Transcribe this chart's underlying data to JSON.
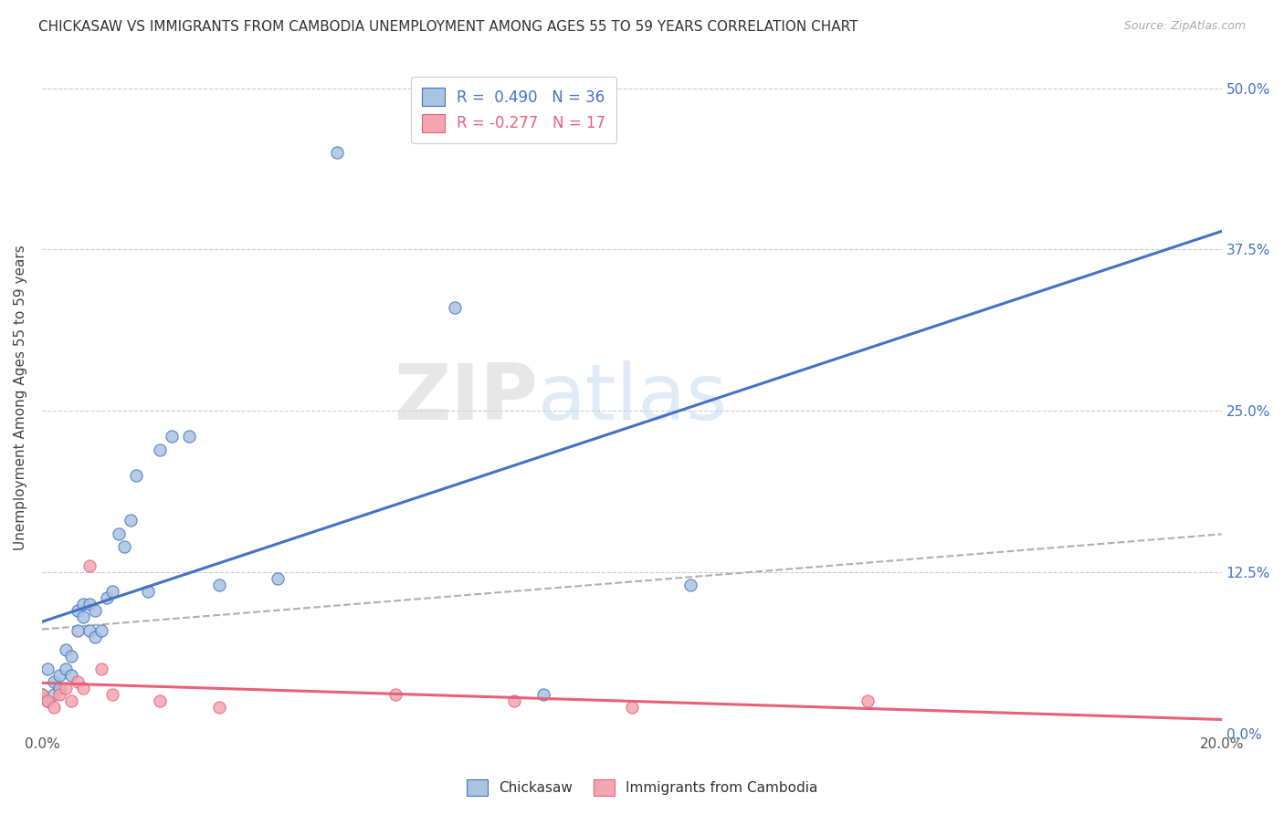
{
  "title": "CHICKASAW VS IMMIGRANTS FROM CAMBODIA UNEMPLOYMENT AMONG AGES 55 TO 59 YEARS CORRELATION CHART",
  "source": "Source: ZipAtlas.com",
  "ylabel": "Unemployment Among Ages 55 to 59 years",
  "legend_label1": "Chickasaw",
  "legend_label2": "Immigrants from Cambodia",
  "r1": 0.49,
  "n1": 36,
  "r2": -0.277,
  "n2": 17,
  "chickasaw_x": [
    0.0,
    0.001,
    0.001,
    0.002,
    0.002,
    0.003,
    0.003,
    0.004,
    0.004,
    0.005,
    0.005,
    0.006,
    0.006,
    0.007,
    0.007,
    0.008,
    0.008,
    0.009,
    0.009,
    0.01,
    0.011,
    0.012,
    0.013,
    0.014,
    0.015,
    0.016,
    0.018,
    0.02,
    0.022,
    0.025,
    0.03,
    0.04,
    0.05,
    0.07,
    0.085,
    0.11
  ],
  "chickasaw_y": [
    0.03,
    0.025,
    0.05,
    0.03,
    0.04,
    0.045,
    0.035,
    0.05,
    0.065,
    0.06,
    0.045,
    0.08,
    0.095,
    0.1,
    0.09,
    0.08,
    0.1,
    0.095,
    0.075,
    0.08,
    0.105,
    0.11,
    0.155,
    0.145,
    0.165,
    0.2,
    0.11,
    0.22,
    0.23,
    0.23,
    0.115,
    0.12,
    0.45,
    0.33,
    0.03,
    0.115
  ],
  "cambodia_x": [
    0.0,
    0.001,
    0.002,
    0.003,
    0.004,
    0.005,
    0.006,
    0.007,
    0.008,
    0.01,
    0.012,
    0.02,
    0.03,
    0.06,
    0.08,
    0.1,
    0.14
  ],
  "cambodia_y": [
    0.03,
    0.025,
    0.02,
    0.03,
    0.035,
    0.025,
    0.04,
    0.035,
    0.13,
    0.05,
    0.03,
    0.025,
    0.02,
    0.03,
    0.025,
    0.02,
    0.025
  ],
  "chickasaw_color": "#a8c4e0",
  "cambodia_color": "#f4a6b0",
  "chickasaw_line_color": "#4472c4",
  "cambodia_line_color": "#e8607a",
  "dashed_line_color": "#b0b0b0",
  "xlim": [
    0.0,
    0.2
  ],
  "ylim": [
    0.0,
    0.52
  ],
  "yticks": [
    0.0,
    0.125,
    0.25,
    0.375,
    0.5
  ],
  "ytick_labels_right": [
    "0.0%",
    "12.5%",
    "25.0%",
    "37.5%",
    "50.0%"
  ],
  "xticks": [
    0.0,
    0.05,
    0.1,
    0.15,
    0.2
  ],
  "xtick_labels": [
    "0.0%",
    "",
    "",
    "",
    "20.0%"
  ],
  "watermark_zip": "ZIP",
  "watermark_atlas": "atlas",
  "background_color": "#ffffff",
  "grid_color": "#cccccc"
}
